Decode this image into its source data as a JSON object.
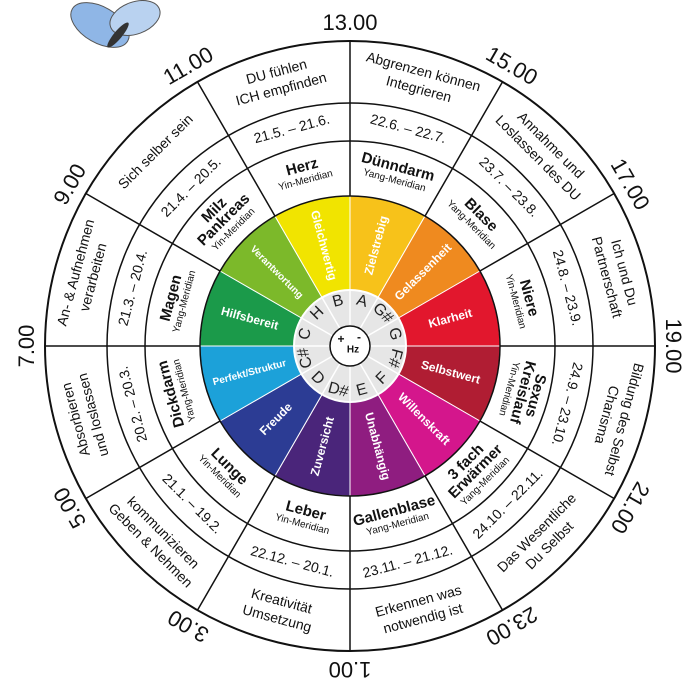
{
  "center": {
    "plus": "+",
    "minus": "-",
    "unit": "Hz"
  },
  "sectors": [
    {
      "time": "13.00",
      "theme": [
        "Abgrenzen können",
        "Integrieren"
      ],
      "dates": "22.6. – 22.7.",
      "organ": [
        "Dünndarm"
      ],
      "meridian": "Yang-Meridian",
      "quality": "Zielstrebig",
      "color": "#f7c21a",
      "note": "A"
    },
    {
      "time": "15.00",
      "theme": [
        "Annahme und",
        "Loslassen des DU"
      ],
      "dates": "23.7. – 23.8.",
      "organ": [
        "Blase"
      ],
      "meridian": "Yang-Meridian",
      "quality": "Gelassenheit",
      "color": "#ef8a1f",
      "note": "G#"
    },
    {
      "time": "17.00",
      "theme": [
        "Ich und Du",
        "Partnerschaft"
      ],
      "dates": "24.8. – 23.9.",
      "organ": [
        "Niere"
      ],
      "meridian": "Yin-Meridian",
      "quality": "Klarheit",
      "color": "#e2172d",
      "note": "G"
    },
    {
      "time": "19.00",
      "theme": [
        "Bildung des Selbst",
        "Charisma"
      ],
      "dates": "24.9. – 23.10.",
      "organ": [
        "Sexus",
        "Kreislauf"
      ],
      "meridian": "Yin-Meridian",
      "quality": "Selbstwert",
      "color": "#b01d33",
      "note": "F#"
    },
    {
      "time": "21.00",
      "theme": [
        "Das Wesentliche",
        "Du Selbst"
      ],
      "dates": "24.10. – 22.11.",
      "organ": [
        "3 fach",
        "Erwärmer"
      ],
      "meridian": "Yang-Meridian",
      "quality": "Willenskraft",
      "color": "#d4168c",
      "note": "F"
    },
    {
      "time": "23.00",
      "theme": [
        "Erkennen was",
        "notwendig ist"
      ],
      "dates": "23.11. – 21.12.",
      "organ": [
        "Gallenblase"
      ],
      "meridian": "Yang-Meridian",
      "quality": "Unabhängig",
      "color": "#8f1d80",
      "note": "E"
    },
    {
      "time": "1.00",
      "theme": [
        "Kreativität",
        "Umsetzung"
      ],
      "dates": "22.12. – 20.1.",
      "organ": [
        "Leber"
      ],
      "meridian": "Yin-Meridian",
      "quality": "Zuversicht",
      "color": "#4a257a",
      "note": "D#"
    },
    {
      "time": "3.00",
      "theme": [
        "kommunizieren",
        "Geben & Nehmen"
      ],
      "dates": "21.1. – 19.2.",
      "organ": [
        "Lunge"
      ],
      "meridian": "Yin-Meridian",
      "quality": "Freude",
      "color": "#2c3c94",
      "note": "D"
    },
    {
      "time": "5.00",
      "theme": [
        "Absorbieren",
        "und loslassen"
      ],
      "dates": "20.2. – 20.3.",
      "organ": [
        "Dickdarm"
      ],
      "meridian": "Yang-Meridian",
      "quality": "Perfekt/Struktur",
      "color": "#1ca1d9",
      "note": "C#"
    },
    {
      "time": "7.00",
      "theme": [
        "An- & Aufnehmen",
        "verarbeiten"
      ],
      "dates": "21.3. – 20.4.",
      "organ": [
        "Magen"
      ],
      "meridian": "Yang-Meridian",
      "quality": "Hilfsbereit",
      "color": "#1b9a4a",
      "note": "C"
    },
    {
      "time": "9.00",
      "theme": [
        "Sich selber sein"
      ],
      "dates": "21.4. – 20.5.",
      "organ": [
        "Milz",
        "Pankreas"
      ],
      "meridian": "Yin-Meridian",
      "quality": "Verantwortung",
      "color": "#7cb92a",
      "note": "H"
    },
    {
      "time": "11.00",
      "theme": [
        "DU fühlen",
        "ICH empfinden"
      ],
      "dates": "21.5. – 21.6.",
      "organ": [
        "Herz"
      ],
      "meridian": "Yin-Meridian",
      "quality": "Gleichwertig",
      "color": "#f1e400",
      "note": "B"
    }
  ]
}
